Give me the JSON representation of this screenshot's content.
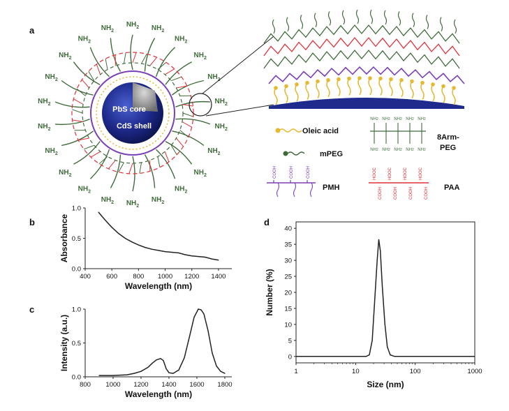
{
  "figure": {
    "panel_labels": [
      "a",
      "b",
      "c",
      "d"
    ],
    "schematic": {
      "core_label": "PbS core",
      "shell_label": "CdS shell",
      "amine_label": "NH",
      "amine_sub": "2",
      "legend": {
        "oleic_acid": "Oleic acid",
        "mpeg": "mPEG",
        "eight_arm_peg_line1": "8Arm-",
        "eight_arm_peg_line2": "PEG",
        "pmh": "PMH",
        "paa": "PAA",
        "cooh": "COOH",
        "hooc": "HOOC"
      },
      "colors": {
        "core_shell": "#1e2a8c",
        "core_inner": "#9a9a9a",
        "crosslink_red": "#e0303a",
        "peg_green": "#3f6b3a",
        "pmh_purple": "#7b3fb5",
        "oleic_gold": "#e5b830"
      }
    }
  },
  "chart_data": [
    {
      "panel": "b",
      "type": "line",
      "xlabel": "Wavelength (nm)",
      "ylabel": "Absorbance",
      "xlim": [
        400,
        1500
      ],
      "ylim": [
        0.0,
        1.0
      ],
      "xticks": [
        400,
        600,
        800,
        1000,
        1200,
        1400
      ],
      "yticks": [
        0.0,
        0.5,
        1.0
      ],
      "ytick_labels": [
        "0.0",
        "0.5",
        "1.0"
      ],
      "x": [
        500,
        550,
        600,
        650,
        700,
        750,
        800,
        850,
        900,
        950,
        1000,
        1050,
        1100,
        1150,
        1200,
        1250,
        1300,
        1350,
        1400
      ],
      "y": [
        0.93,
        0.8,
        0.68,
        0.58,
        0.5,
        0.44,
        0.39,
        0.35,
        0.32,
        0.3,
        0.28,
        0.27,
        0.26,
        0.23,
        0.21,
        0.2,
        0.19,
        0.16,
        0.14
      ]
    },
    {
      "panel": "c",
      "type": "line",
      "xlabel": "Wavelength (nm)",
      "ylabel": "Intensity (a.u.)",
      "xlim": [
        800,
        1850
      ],
      "ylim": [
        0.0,
        1.0
      ],
      "xticks": [
        800,
        1000,
        1200,
        1400,
        1600,
        1800
      ],
      "yticks": [
        0.0,
        0.5,
        1.0
      ],
      "ytick_labels": [
        "0.0",
        "0.5",
        "1.0"
      ],
      "x": [
        900,
        1000,
        1100,
        1150,
        1200,
        1250,
        1280,
        1310,
        1340,
        1360,
        1380,
        1400,
        1430,
        1470,
        1510,
        1550,
        1580,
        1610,
        1630,
        1650,
        1680,
        1710,
        1740,
        1770,
        1800
      ],
      "y": [
        0.02,
        0.02,
        0.03,
        0.05,
        0.08,
        0.14,
        0.2,
        0.25,
        0.27,
        0.24,
        0.12,
        0.06,
        0.05,
        0.1,
        0.28,
        0.62,
        0.88,
        1.0,
        0.99,
        0.93,
        0.68,
        0.35,
        0.16,
        0.08,
        0.05
      ]
    },
    {
      "panel": "d",
      "type": "line",
      "xlabel": "Size (nm)",
      "ylabel": "Number (%)",
      "xscale": "log",
      "xlim": [
        1,
        1000
      ],
      "ylim": [
        -2,
        42
      ],
      "xticks": [
        1,
        10,
        100,
        1000
      ],
      "xtick_labels": [
        "1",
        "10",
        "100",
        "1000"
      ],
      "yticks": [
        0,
        5,
        10,
        15,
        20,
        25,
        30,
        35,
        40
      ],
      "ytick_labels": [
        "0",
        "5",
        "10",
        "15",
        "20",
        "25",
        "30",
        "35",
        "40"
      ],
      "x": [
        1,
        15,
        17,
        19,
        21,
        23,
        24.5,
        26,
        28,
        31,
        34,
        38,
        45,
        1000
      ],
      "y": [
        0,
        0,
        0.5,
        5,
        18,
        30,
        36.5,
        33,
        22,
        10,
        3,
        0.5,
        0,
        0
      ]
    }
  ]
}
